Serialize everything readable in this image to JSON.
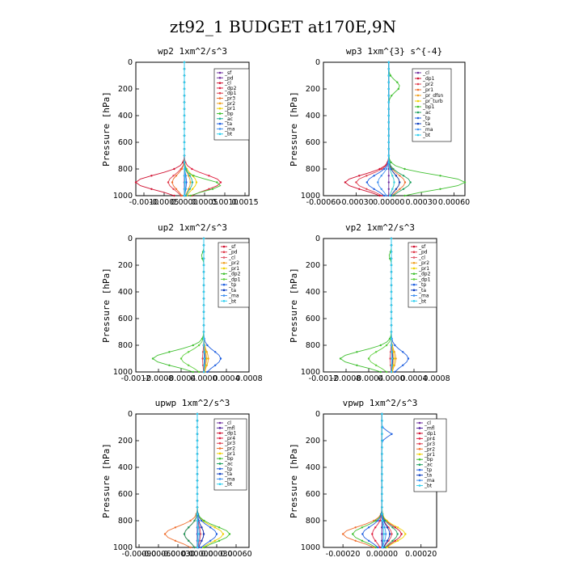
{
  "figure": {
    "title": "zt92_1  BUDGET at170E,9N"
  },
  "chart_data": [
    {
      "type": "line",
      "title": "wp2   1xm^2/s^3",
      "ylabel": "Pressure [hPa]",
      "ylim": [
        1000,
        0
      ],
      "xlim": [
        -0.0012,
        0.0016
      ],
      "yticks": [
        0,
        200,
        400,
        600,
        800,
        1000
      ],
      "xticks": [
        "-0.0010",
        "-0.0005",
        "0.0000",
        "0.0005",
        "0.0010",
        "0.0015"
      ],
      "legend": [
        "_sf",
        "_pd",
        "_cl",
        "_dp2",
        "_dp1",
        "_pr3",
        "_pr2",
        "_pr1",
        "_bp",
        "_ac",
        "_ta",
        "_ma",
        "_bt"
      ],
      "colors": [
        "#7030a0",
        "#7030a0",
        "#d01030",
        "#e02040",
        "#e04050",
        "#f07030",
        "#f0a020",
        "#f0d000",
        "#40c030",
        "#20b0a0",
        "#2060e0",
        "#4090f0",
        "#30d0f0"
      ]
    },
    {
      "type": "line",
      "title": "wp3   1xm^{3} s^{-4}",
      "ylabel": "Pressure [hPa]",
      "ylim": [
        1000,
        0
      ],
      "xlim": [
        -0.0006,
        0.0007
      ],
      "yticks": [
        0,
        200,
        400,
        600,
        800,
        1000
      ],
      "xticks": [
        "-0.00060",
        "-0.00030",
        "0.00000",
        "0.00030",
        "0.00060"
      ],
      "legend": [
        "_cl",
        "_dp1",
        "_pr2",
        "_pr1",
        "_pr_dfsn",
        "_pr_turb",
        "_bp1",
        "_ac",
        "_tp",
        "_ta",
        "_ma",
        "_bt"
      ],
      "colors": [
        "#7030a0",
        "#d01030",
        "#e04050",
        "#f07030",
        "#f0a020",
        "#f0d000",
        "#40c030",
        "#20a060",
        "#2060e0",
        "#1040c0",
        "#4090f0",
        "#30d0f0"
      ]
    },
    {
      "type": "line",
      "title": "up2   1xm^2/s^3",
      "ylabel": "Pressure [hPa]",
      "ylim": [
        1000,
        0
      ],
      "xlim": [
        -0.0012,
        0.0008
      ],
      "yticks": [
        0,
        200,
        400,
        600,
        800,
        1000
      ],
      "xticks": [
        "-0.0012",
        "-0.0008",
        "-0.0004",
        "0.0000",
        "0.0004",
        "0.0008"
      ],
      "legend": [
        "_sf",
        "_pd",
        "_cl",
        "_pr2",
        "_pr1",
        "_dp2",
        "_dp1",
        "_tp",
        "_ta",
        "_ma",
        "_bt"
      ],
      "colors": [
        "#d01030",
        "#e04050",
        "#e06070",
        "#f0a020",
        "#f0d000",
        "#40c030",
        "#60d040",
        "#2060e0",
        "#1040c0",
        "#4090f0",
        "#30d0f0"
      ]
    },
    {
      "type": "line",
      "title": "vp2   1xm^2/s^3",
      "ylabel": "Pressure [hPa]",
      "ylim": [
        1000,
        0
      ],
      "xlim": [
        -0.0012,
        0.0008
      ],
      "yticks": [
        0,
        200,
        400,
        600,
        800,
        1000
      ],
      "xticks": [
        "-0.0012",
        "-0.0008",
        "-0.0004",
        "0.0000",
        "0.0004",
        "0.0008"
      ],
      "legend": [
        "_sf",
        "_pd",
        "_cl",
        "_pr2",
        "_pr1",
        "_dp2",
        "_dp1",
        "_tp",
        "_ta",
        "_ma",
        "_bt"
      ],
      "colors": [
        "#d01030",
        "#e04050",
        "#e06070",
        "#f0a020",
        "#f0d000",
        "#40c030",
        "#60d040",
        "#2060e0",
        "#1040c0",
        "#4090f0",
        "#30d0f0"
      ]
    },
    {
      "type": "line",
      "title": "upwp   1xm^2/s^3",
      "ylabel": "Pressure [hPa]",
      "ylim": [
        1000,
        0
      ],
      "xlim": [
        -0.00095,
        0.0008
      ],
      "yticks": [
        0,
        200,
        400,
        600,
        800,
        1000
      ],
      "xticks": [
        "-0.00090",
        "-0.00060",
        "-0.00030",
        "0.00000",
        "0.00030",
        "0.00060"
      ],
      "legend": [
        "_cl",
        "_mfl",
        "_dp1",
        "_pr4",
        "_pr3",
        "_pr2",
        "_pr1",
        "_bp",
        "_ac",
        "_tp",
        "_ta",
        "_ma",
        "_bt"
      ],
      "colors": [
        "#7030a0",
        "#5020a0",
        "#d01030",
        "#e02040",
        "#e04050",
        "#f07030",
        "#f0d000",
        "#40c030",
        "#20a060",
        "#2060e0",
        "#1040c0",
        "#4090f0",
        "#30d0f0"
      ]
    },
    {
      "type": "line",
      "title": "vpwp   1xm^2/s^3",
      "ylabel": "Pressure [hPa]",
      "ylim": [
        1000,
        0
      ],
      "xlim": [
        -0.0003,
        0.00028
      ],
      "yticks": [
        0,
        200,
        400,
        600,
        800,
        1000
      ],
      "xticks": [
        "-0.00020",
        "0.00000",
        "0.00020"
      ],
      "legend": [
        "_cl",
        "_mfl",
        "_dp1",
        "_pr4",
        "_pr3",
        "_pr2",
        "_pr1",
        "_bp",
        "_ac",
        "_tp",
        "_ta",
        "_ma",
        "_bt"
      ],
      "colors": [
        "#7030a0",
        "#5020a0",
        "#d01030",
        "#e02040",
        "#e04050",
        "#f07030",
        "#f0d000",
        "#40c030",
        "#20a060",
        "#2060e0",
        "#1040c0",
        "#4090f0",
        "#30d0f0"
      ]
    }
  ]
}
